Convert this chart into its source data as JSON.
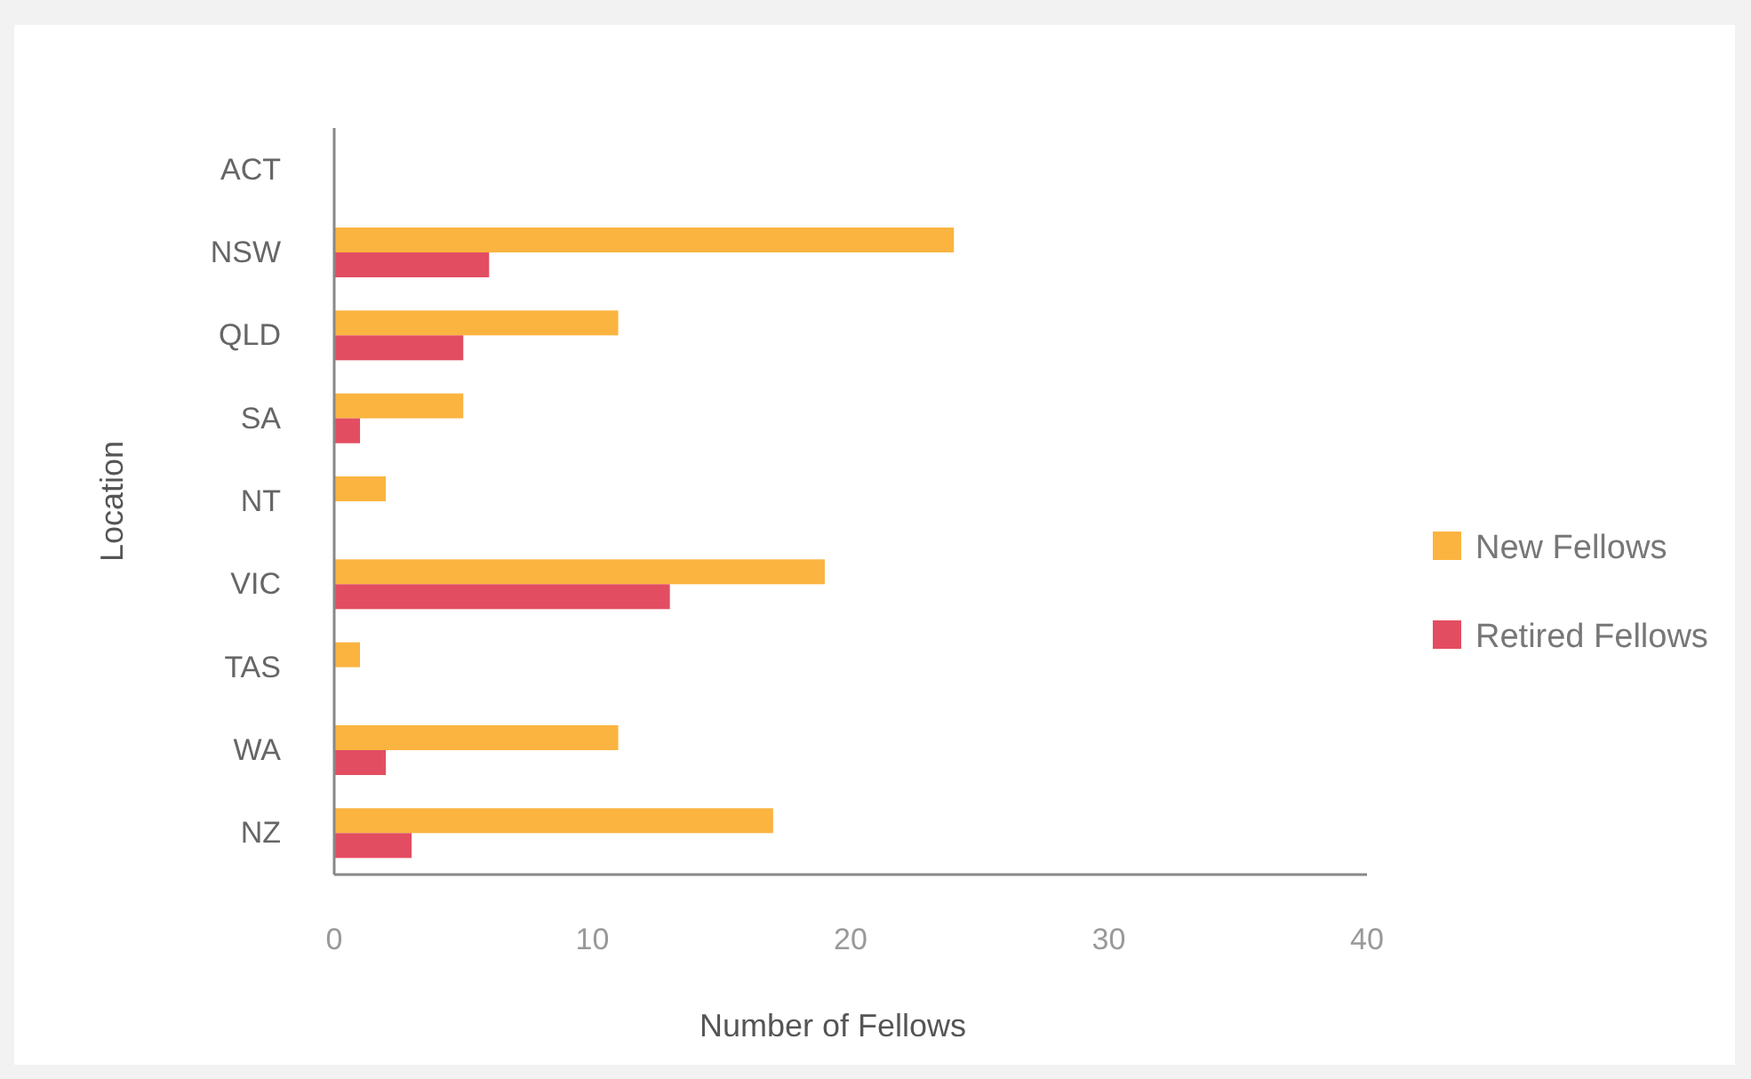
{
  "chart_data": {
    "type": "bar",
    "orientation": "horizontal",
    "categories": [
      "ACT",
      "NSW",
      "QLD",
      "SA",
      "NT",
      "VIC",
      "TAS",
      "WA",
      "NZ"
    ],
    "series": [
      {
        "name": "New Fellows",
        "color": "#fbb440",
        "values": [
          0,
          24,
          11,
          5,
          2,
          19,
          1,
          11,
          17
        ]
      },
      {
        "name": "Retired Fellows",
        "color": "#e34d62",
        "values": [
          0,
          6,
          5,
          1,
          0,
          13,
          0,
          2,
          3
        ]
      }
    ],
    "xlim": [
      0,
      40
    ],
    "xticks": [
      0,
      10,
      20,
      30,
      40
    ],
    "xlabel": "Number of Fellows",
    "ylabel": "Location",
    "grid": false,
    "legend": "right"
  }
}
